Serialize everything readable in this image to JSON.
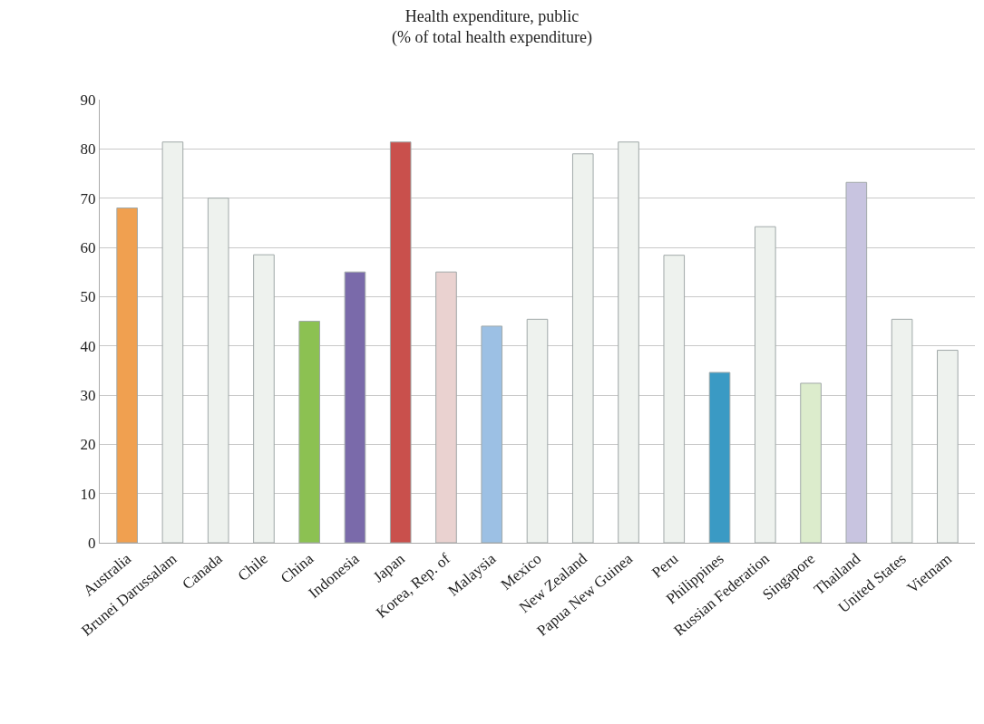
{
  "chart_data": {
    "type": "bar",
    "title": "Health expenditure, public\n(% of total health expenditure)",
    "categories": [
      "Australia",
      "Brunei Darussalam",
      "Canada",
      "Chile",
      "China",
      "Indonesia",
      "Japan",
      "Korea, Rep. of",
      "Malaysia",
      "Mexico",
      "New Zealand",
      "Papua New Guinea",
      "Peru",
      "Philippines",
      "Russian Federation",
      "Singapore",
      "Thailand",
      "United States",
      "Vietnam"
    ],
    "values": [
      68,
      81.4,
      70,
      58.5,
      45,
      55,
      81.4,
      55,
      44,
      45.4,
      79,
      81.4,
      58.4,
      34.6,
      64.2,
      32.4,
      73.2,
      45.4,
      39.1
    ],
    "colors": [
      "#f0a050",
      "#eef2ee",
      "#eef2ee",
      "#eef2ee",
      "#8cc152",
      "#7a6aaa",
      "#c9504c",
      "#ead2d0",
      "#9cc0e4",
      "#eef2ee",
      "#eef2ee",
      "#eef2ee",
      "#eef2ee",
      "#3a9ac4",
      "#eef2ee",
      "#dceccc",
      "#c8c4e0",
      "#eef2ee",
      "#eef2ee"
    ],
    "ylim": [
      0,
      90
    ],
    "yticks": [
      0,
      10,
      20,
      30,
      40,
      50,
      60,
      70,
      80,
      90
    ],
    "grid": "y"
  }
}
